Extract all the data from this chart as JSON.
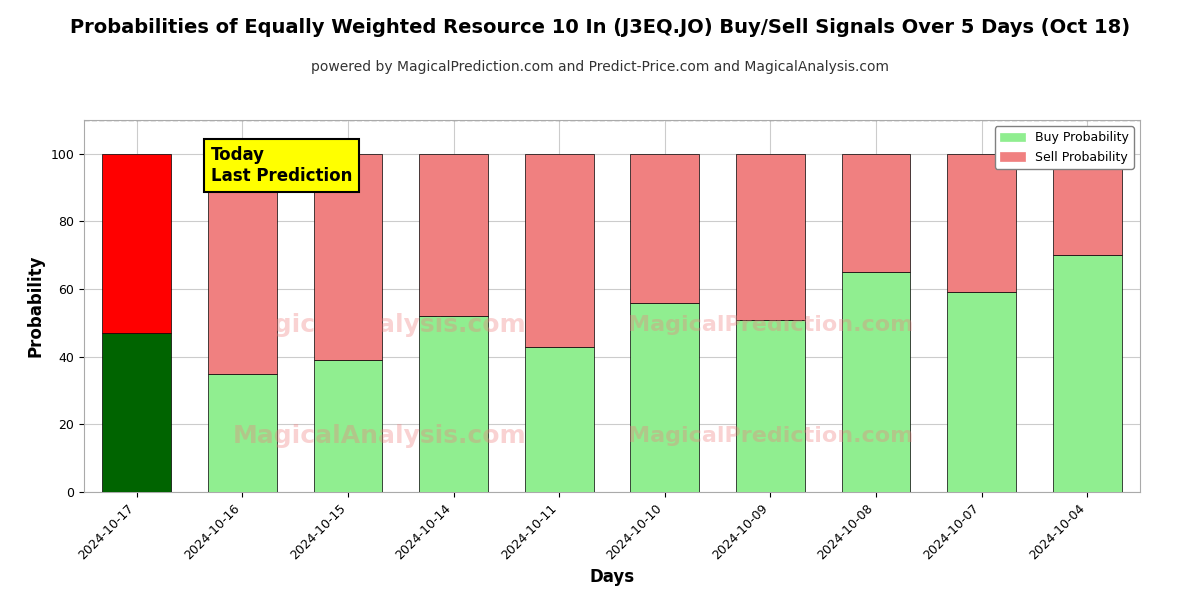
{
  "title": "Probabilities of Equally Weighted Resource 10 In (J3EQ.JO) Buy/Sell Signals Over 5 Days (Oct 18)",
  "subtitle": "powered by MagicalPrediction.com and Predict-Price.com and MagicalAnalysis.com",
  "xlabel": "Days",
  "ylabel": "Probability",
  "categories": [
    "2024-10-17",
    "2024-10-16",
    "2024-10-15",
    "2024-10-14",
    "2024-10-11",
    "2024-10-10",
    "2024-10-09",
    "2024-10-08",
    "2024-10-07",
    "2024-10-04"
  ],
  "buy_values": [
    47,
    35,
    39,
    52,
    43,
    56,
    51,
    65,
    59,
    70
  ],
  "sell_values": [
    53,
    65,
    61,
    48,
    57,
    44,
    49,
    35,
    41,
    30
  ],
  "today_buy_color": "#006400",
  "today_sell_color": "#FF0000",
  "buy_color": "#90EE90",
  "sell_color": "#F08080",
  "today_annotation_bg": "#FFFF00",
  "today_annotation_text": "Today\nLast Prediction",
  "legend_buy_label": "Buy Probability",
  "legend_sell_label": "Sell Probability",
  "ylim": [
    0,
    110
  ],
  "yticks": [
    0,
    20,
    40,
    60,
    80,
    100
  ],
  "dashed_line_y": 110,
  "background_color": "#ffffff",
  "grid_color": "#cccccc",
  "bar_edge_color": "#000000",
  "title_fontsize": 14,
  "subtitle_fontsize": 10,
  "axis_label_fontsize": 12,
  "tick_fontsize": 9
}
